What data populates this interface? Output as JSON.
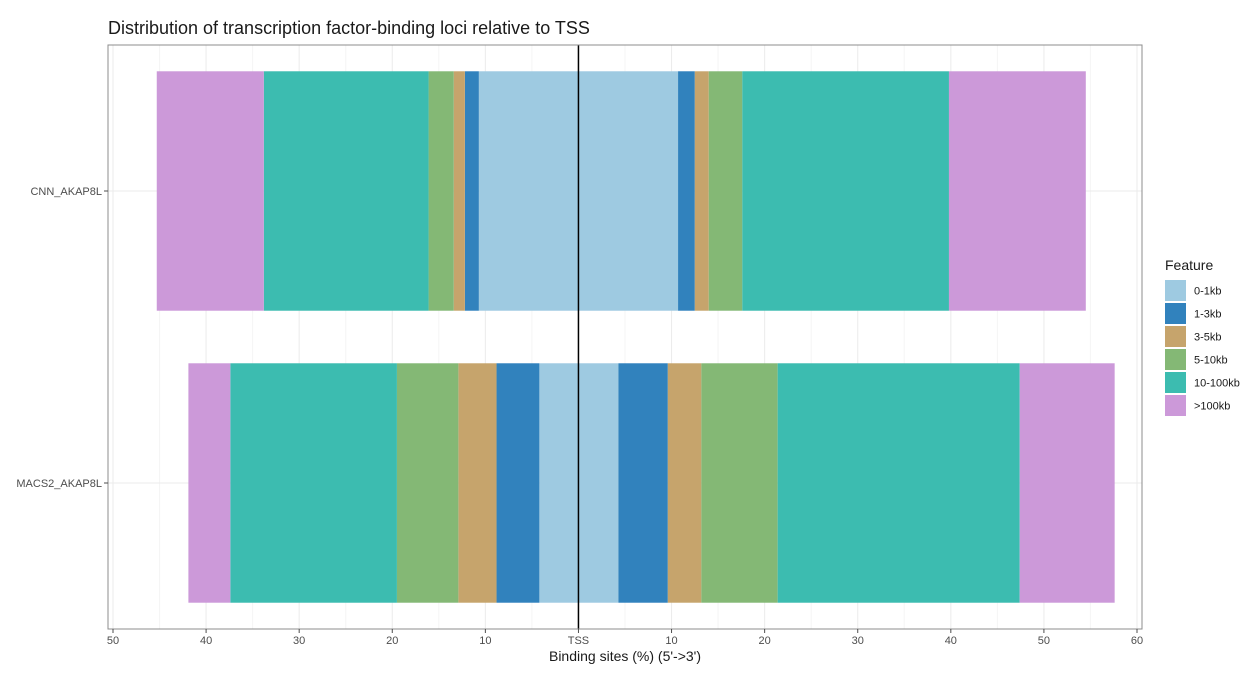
{
  "chart_data": {
    "type": "bar",
    "orientation": "horizontal",
    "stacked": true,
    "diverging": true,
    "title": "Distribution of transcription factor-binding loci relative to TSS",
    "xlabel": "Binding sites (%) (5'->3')",
    "ylabel": "",
    "xlim": [
      -50,
      60
    ],
    "x_ticks": [
      -50,
      -40,
      -30,
      -20,
      -10,
      0,
      10,
      20,
      30,
      40,
      50,
      60
    ],
    "x_tick_labels": [
      "50",
      "40",
      "30",
      "20",
      "10",
      "TSS",
      "10",
      "20",
      "30",
      "40",
      "50",
      "60"
    ],
    "categories": [
      "CNN_AKAP8L",
      "MACS2_AKAP8L"
    ],
    "grid": true,
    "legend_position": "right",
    "series": [
      {
        "name": "0-1kb",
        "color": "#9ECAE1",
        "upstream": [
          -10.7,
          -4.2
        ],
        "downstream": [
          10.7,
          4.3
        ]
      },
      {
        "name": "1-3kb",
        "color": "#3182BD",
        "upstream": [
          -1.5,
          -4.6
        ],
        "downstream": [
          1.8,
          5.3
        ]
      },
      {
        "name": "3-5kb",
        "color": "#C6A46C",
        "upstream": [
          -1.2,
          -4.1
        ],
        "downstream": [
          1.5,
          3.6
        ]
      },
      {
        "name": "5-10kb",
        "color": "#84B875",
        "upstream": [
          -2.7,
          -6.6
        ],
        "downstream": [
          3.6,
          8.2
        ]
      },
      {
        "name": "10-100kb",
        "color": "#3CBCB0",
        "upstream": [
          -17.7,
          -17.9
        ],
        "downstream": [
          22.2,
          26.0
        ]
      },
      {
        "name": ">100kb",
        "color": "#CC99D9",
        "upstream": [
          -11.5,
          -4.5
        ],
        "downstream": [
          14.7,
          10.2
        ]
      }
    ],
    "reference_line": {
      "x": 0,
      "label": "TSS"
    }
  }
}
